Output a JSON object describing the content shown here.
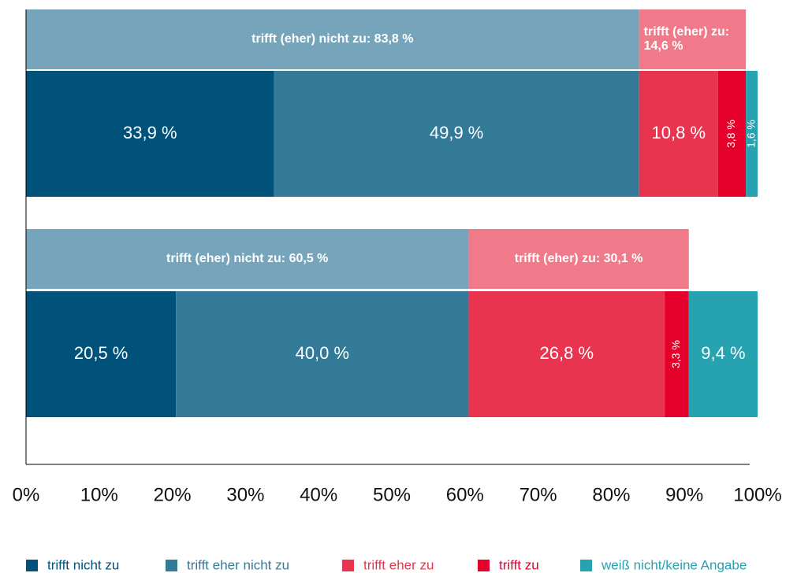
{
  "chart_data": {
    "type": "stacked_bar_horizontal",
    "categories": [
      null,
      null
    ],
    "series": [
      {
        "name": "trifft nicht zu",
        "color": "#00527a",
        "values": [
          33.9,
          20.5
        ],
        "value_labels": [
          "33,9 %",
          "20,5 %"
        ]
      },
      {
        "name": "trifft eher nicht zu",
        "color": "#337a99",
        "values": [
          49.9,
          40.0
        ],
        "value_labels": [
          "49,9 %",
          "40,0 %"
        ]
      },
      {
        "name": "trifft eher zu",
        "color": "#e8344f",
        "values": [
          10.8,
          26.8
        ],
        "value_labels": [
          "10,8 %",
          "26,8 %"
        ]
      },
      {
        "name": "trifft zu",
        "color": "#e4002b",
        "values": [
          3.8,
          3.3
        ],
        "value_labels": [
          "3,8 %",
          "3,3 %"
        ]
      },
      {
        "name": "weiß nicht/keine Angabe",
        "color": "#27a2b0",
        "values": [
          1.6,
          9.4
        ],
        "value_labels": [
          "1,6 %",
          "9,4 %"
        ]
      }
    ],
    "summary_series": [
      {
        "color": "#76a5bb",
        "values": [
          83.8,
          60.5
        ],
        "value_labels": [
          "trifft (eher) nicht zu: 83,8 %",
          "trifft (eher) nicht zu: 60,5 %"
        ]
      },
      {
        "color": "#f07a8a",
        "values": [
          14.6,
          30.1
        ],
        "value_labels": [
          "trifft (eher) zu: 14,6 %",
          "trifft (eher) zu: 30,1 %"
        ]
      }
    ],
    "xlim": [
      0,
      100
    ],
    "xticks": [
      {
        "value": 0,
        "label": "0%"
      },
      {
        "value": 10,
        "label": "10%"
      },
      {
        "value": 20,
        "label": "20%"
      },
      {
        "value": 30,
        "label": "30%"
      },
      {
        "value": 40,
        "label": "40%"
      },
      {
        "value": 50,
        "label": "50%"
      },
      {
        "value": 60,
        "label": "60%"
      },
      {
        "value": 70,
        "label": "70%"
      },
      {
        "value": 80,
        "label": "80%"
      },
      {
        "value": 90,
        "label": "90%"
      },
      {
        "value": 100,
        "label": "100%"
      }
    ],
    "legend": "bottom"
  }
}
